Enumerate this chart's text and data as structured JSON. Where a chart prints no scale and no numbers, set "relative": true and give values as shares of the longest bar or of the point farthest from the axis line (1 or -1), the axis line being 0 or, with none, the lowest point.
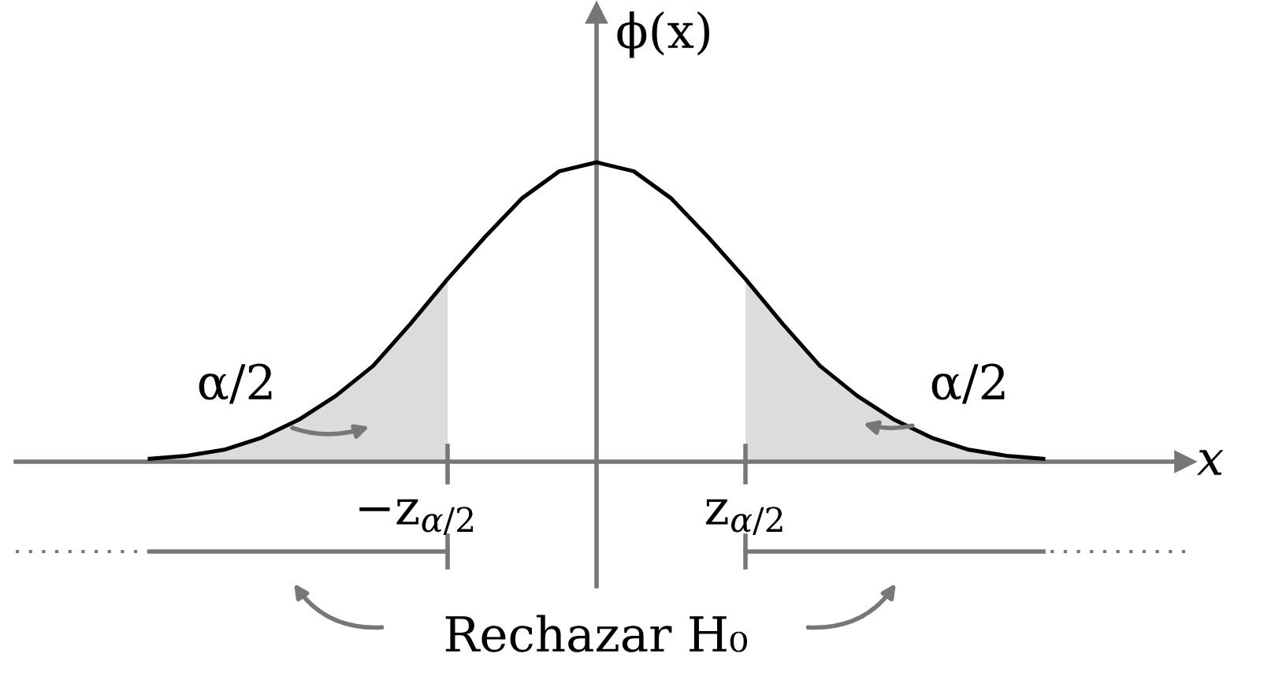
{
  "chart_data": {
    "type": "line",
    "relative": true,
    "xlabel": "x",
    "ylabel": "ϕ(x)",
    "categories": [
      null,
      null,
      null,
      null,
      null,
      null,
      null,
      null,
      null,
      null,
      null,
      null,
      null,
      null,
      null,
      null,
      null,
      null,
      null,
      null,
      null,
      null,
      null,
      null,
      null
    ],
    "series": [
      {
        "type": "area",
        "color": "#dcdcdc",
        "values": [
          0.01,
          0.02,
          0.04,
          0.08,
          0.14,
          0.22,
          0.32,
          0.46,
          0.61,
          null,
          null,
          null,
          null,
          null,
          null,
          null,
          0.61,
          0.46,
          0.32,
          0.22,
          0.14,
          0.08,
          0.04,
          0.02,
          0.01
        ]
      },
      {
        "color": "#000000",
        "values": [
          0.01,
          0.02,
          0.04,
          0.08,
          0.14,
          0.22,
          0.32,
          0.46,
          0.61,
          0.75,
          0.88,
          0.97,
          1,
          0.97,
          0.88,
          0.75,
          0.61,
          0.46,
          0.32,
          0.22,
          0.14,
          0.08,
          0.04,
          0.02,
          0.01
        ]
      }
    ],
    "annotations": [
      "α/2",
      "α/2",
      "−z$_{α/2}$",
      "z$_{α/2}$",
      "Rechazar H₀"
    ]
  }
}
